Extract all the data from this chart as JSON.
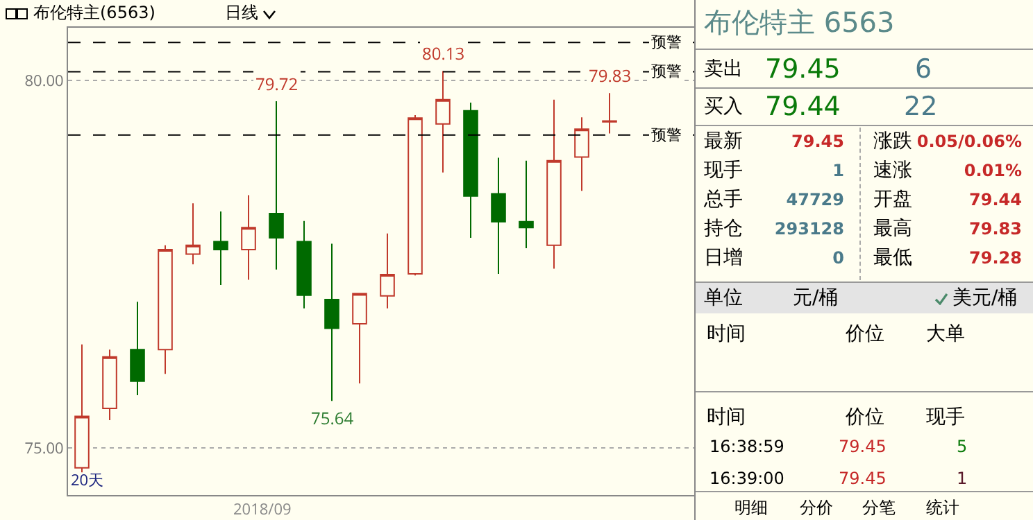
{
  "chart_data": [
    {
      "type": "candlestick",
      "title": "布伦特主(6563)",
      "subtitle": "日线",
      "categories": [
        null,
        null,
        null,
        null,
        null,
        null,
        null,
        null,
        null,
        null,
        null,
        null,
        null,
        null,
        null,
        null,
        null,
        null,
        null,
        null
      ],
      "ohlc": [
        [
          74.73,
          76.41,
          74.67,
          75.43
        ],
        [
          75.54,
          76.34,
          75.38,
          76.24
        ],
        [
          76.34,
          76.99,
          75.72,
          75.91
        ],
        [
          76.34,
          77.76,
          76.01,
          77.7
        ],
        [
          77.64,
          78.33,
          77.5,
          77.76
        ],
        [
          77.81,
          78.22,
          77.22,
          77.7
        ],
        [
          77.7,
          78.44,
          77.29,
          78.0
        ],
        [
          78.19,
          79.72,
          77.43,
          77.86
        ],
        [
          77.81,
          78.09,
          76.9,
          77.08
        ],
        [
          77.02,
          77.78,
          75.64,
          76.63
        ],
        [
          76.69,
          77.1,
          75.88,
          77.1
        ],
        [
          77.07,
          77.92,
          76.9,
          77.36
        ],
        [
          77.37,
          79.53,
          77.35,
          79.49
        ],
        [
          79.41,
          80.13,
          78.75,
          79.74
        ],
        [
          79.59,
          79.7,
          77.86,
          78.43
        ],
        [
          78.46,
          78.95,
          77.37,
          78.08
        ],
        [
          78.08,
          78.91,
          77.72,
          78.0
        ],
        [
          77.76,
          79.74,
          77.44,
          78.91
        ],
        [
          78.96,
          79.5,
          78.5,
          79.34
        ],
        [
          79.44,
          79.83,
          79.28,
          79.45
        ]
      ],
      "ylim": [
        74.36,
        80.72
      ],
      "yticks": [
        {
          "value": 75,
          "label": "75.00"
        },
        {
          "value": 80,
          "label": "80.00"
        }
      ],
      "grid": "y",
      "ref_lines": [
        {
          "axis": "y",
          "value": 80.52,
          "label": "预警",
          "line_style": "dashed",
          "color": "#000000"
        },
        {
          "axis": "y",
          "value": 80.12,
          "label": "预警",
          "line_style": "dashed",
          "color": "#000000"
        },
        {
          "axis": "y",
          "value": 79.26,
          "label": "预警",
          "line_style": "dashed",
          "color": "#000000"
        }
      ],
      "annotations": [
        {
          "text": "79.72",
          "y": 79.72
        },
        {
          "text": "80.13",
          "y": 80.13
        },
        {
          "text": "79.83",
          "y": 79.83
        },
        {
          "text": "75.64",
          "y": 75.64
        },
        "2018/09",
        "20天"
      ]
    },
    {
      "type": "other",
      "title": "布伦特主 6563",
      "annotations": [
        "卖出",
        "79.45",
        "6",
        "买入",
        "79.44",
        "22",
        "最新",
        "79.45",
        "涨跌",
        "0.05/0.06%",
        "现手",
        "1",
        "速涨",
        "0.01%",
        "总手",
        "47729",
        "开盘",
        "79.44",
        "持仓",
        "293128",
        "最高",
        "79.83",
        "日增",
        "0",
        "最低",
        "79.28",
        "单位",
        "元/桶",
        "美元/桶",
        "时间",
        "价位",
        "大单",
        "时间",
        "价位",
        "现手",
        "16:38:59",
        "79.45",
        "5",
        "16:39:00",
        "79.45",
        "1",
        "明细",
        "分价",
        "分笔",
        "统计"
      ]
    }
  ]
}
